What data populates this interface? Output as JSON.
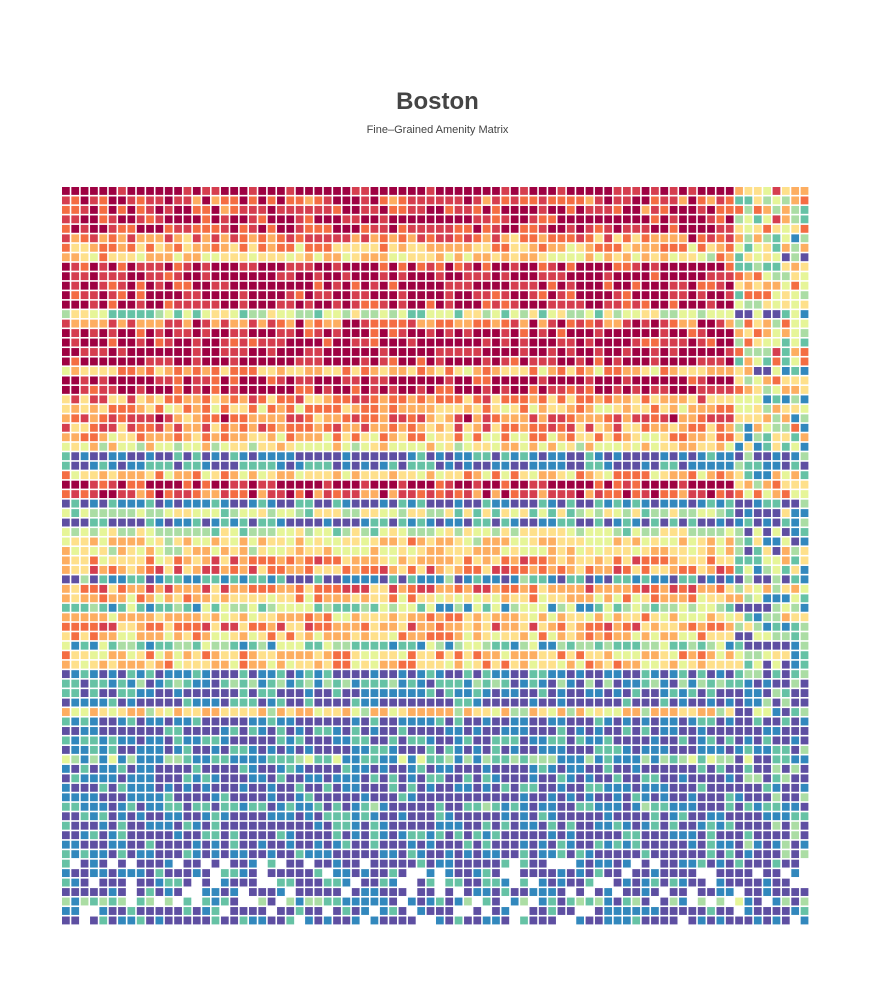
{
  "chart_data": {
    "type": "heatmap",
    "title": "Boston",
    "subtitle": "Fine–Grained Amenity Matrix",
    "n_rows": 78,
    "n_cols": 80,
    "palette": [
      "#5e4fa2",
      "#3288bd",
      "#66c2a5",
      "#abdda4",
      "#e6f598",
      "#fee08b",
      "#fdae61",
      "#f46d43",
      "#d53e4f",
      "#9e0142"
    ],
    "row_profile": [
      9.2,
      7.6,
      8.0,
      8.6,
      8.4,
      7.0,
      5.8,
      5.0,
      8.6,
      9.0,
      8.6,
      8.6,
      8.4,
      3.6,
      7.4,
      8.8,
      8.6,
      9.2,
      8.8,
      5.8,
      8.8,
      8.6,
      6.4,
      5.8,
      7.0,
      6.6,
      5.6,
      4.4,
      0.4,
      0.8,
      5.4,
      8.6,
      7.8,
      0.8,
      3.8,
      0.6,
      3.8,
      5.0,
      4.8,
      6.0,
      6.4,
      1.0,
      6.8,
      5.6,
      2.8,
      5.4,
      6.4,
      5.4,
      2.6,
      5.6,
      5.4,
      0.6,
      1.8,
      0.6,
      0.4,
      4.8,
      0.6,
      0.4,
      0.8,
      0.4,
      2.2,
      0.3,
      0.8,
      0.5,
      0.3,
      1.0,
      0.3,
      0.4,
      0.5,
      0.3,
      0.3,
      0.3,
      0.3,
      0.6,
      0.3,
      1.6,
      0.2,
      0.2
    ],
    "xlabel": "",
    "ylabel": ""
  }
}
